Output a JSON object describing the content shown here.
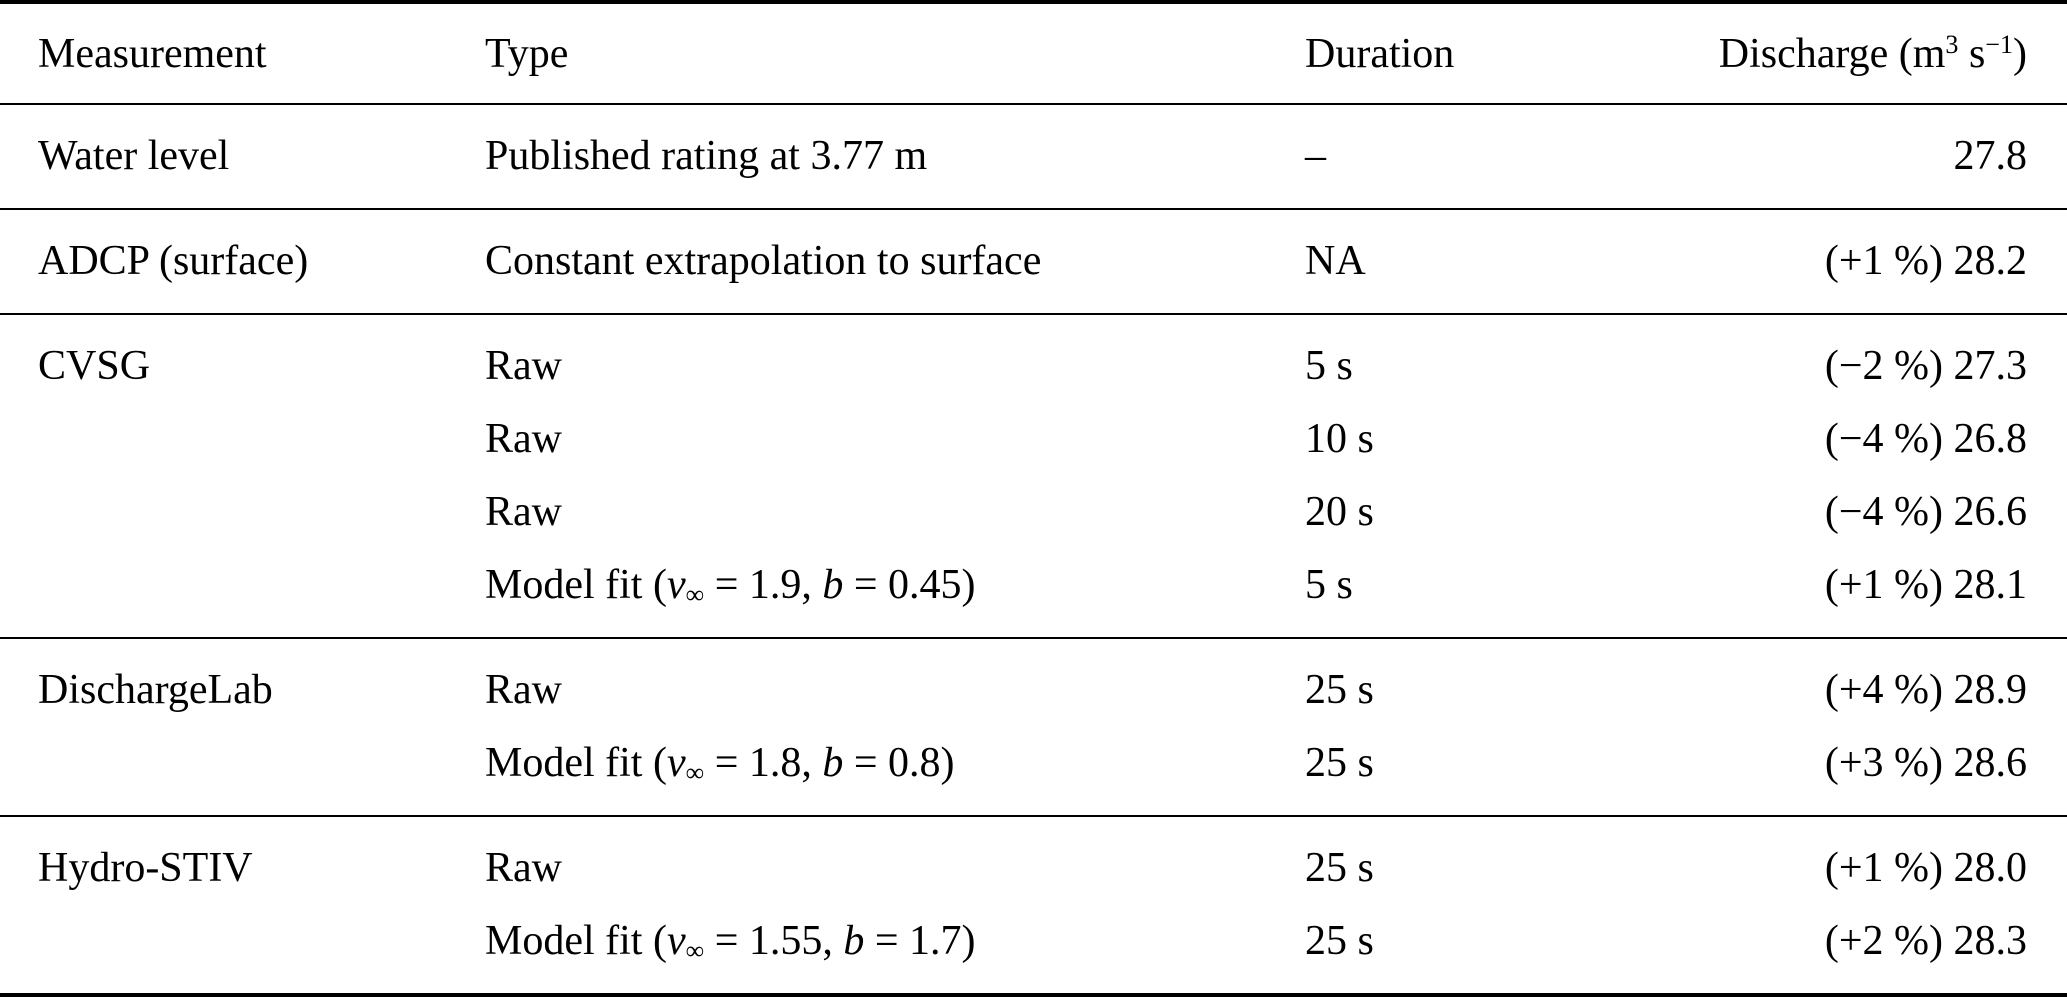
{
  "page": {
    "background_color": "#ffffff",
    "text_color": "#000000"
  },
  "table": {
    "headers": {
      "measurement": "Measurement",
      "type": "Type",
      "duration": "Duration",
      "discharge": {
        "pre": "Discharge (m",
        "sup1": "3",
        "mid": " s",
        "sup2": "−1",
        "post": ")"
      }
    },
    "groups": [
      {
        "rows": [
          {
            "measurement": "Water level",
            "type": "Published rating at 3.77 m",
            "duration": "–",
            "discharge": "27.8"
          }
        ]
      },
      {
        "rows": [
          {
            "measurement": "ADCP (surface)",
            "type": "Constant extrapolation to surface",
            "duration": "NA",
            "discharge": "(+1 %) 28.2"
          }
        ]
      },
      {
        "rows": [
          {
            "measurement": "CVSG",
            "type": "Raw",
            "duration": "5 s",
            "discharge": "(−2 %) 27.3"
          },
          {
            "measurement": "",
            "type": "Raw",
            "duration": "10 s",
            "discharge": "(−4 %) 26.8"
          },
          {
            "measurement": "",
            "type": "Raw",
            "duration": "20 s",
            "discharge": "(−4 %) 26.6"
          },
          {
            "measurement": "",
            "type_parts": {
              "pre": "Model fit (",
              "var1": "v",
              "sub1": "∞",
              "mid1": " = 1.9, ",
              "var2": "b",
              "post": " = 0.45)"
            },
            "duration": "5 s",
            "discharge": "(+1 %) 28.1"
          }
        ]
      },
      {
        "rows": [
          {
            "measurement": "DischargeLab",
            "type": "Raw",
            "duration": "25 s",
            "discharge": "(+4 %) 28.9"
          },
          {
            "measurement": "",
            "type_parts": {
              "pre": "Model fit (",
              "var1": "v",
              "sub1": "∞",
              "mid1": " = 1.8, ",
              "var2": "b",
              "post": " = 0.8)"
            },
            "duration": "25 s",
            "discharge": "(+3 %) 28.6"
          }
        ]
      },
      {
        "rows": [
          {
            "measurement": "Hydro-STIV",
            "type": "Raw",
            "duration": "25 s",
            "discharge": "(+1 %) 28.0"
          },
          {
            "measurement": "",
            "type_parts": {
              "pre": "Model fit (",
              "var1": "v",
              "sub1": "∞",
              "mid1": " = 1.55, ",
              "var2": "b",
              "post": " = 1.7)"
            },
            "duration": "25 s",
            "discharge": "(+2 %) 28.3"
          }
        ]
      }
    ]
  }
}
